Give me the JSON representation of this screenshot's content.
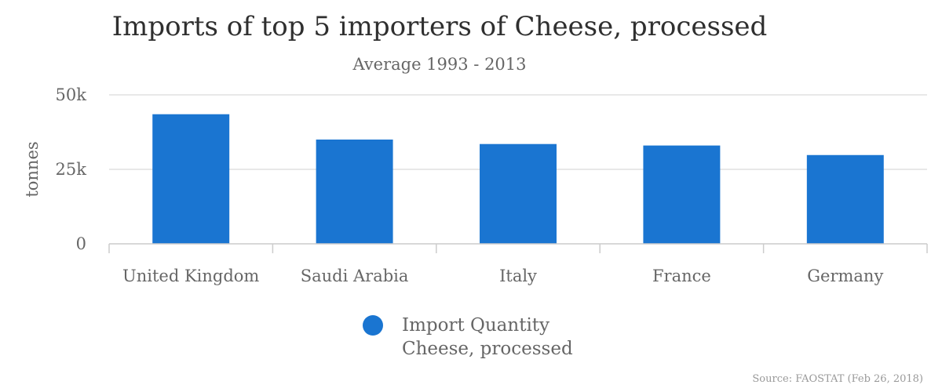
{
  "chart_data": {
    "type": "bar",
    "title": "Imports of top 5 importers of Cheese, processed",
    "subtitle": "Average 1993 - 2013",
    "xlabel": "",
    "ylabel": "tonnes",
    "ylim": [
      0,
      50000
    ],
    "yticks": [
      0,
      25000,
      50000
    ],
    "ytick_labels": [
      "0",
      "25k",
      "50k"
    ],
    "categories": [
      "United Kingdom",
      "Saudi Arabia",
      "Italy",
      "France",
      "Germany"
    ],
    "series": [
      {
        "name": "Import Quantity",
        "name_line2": "Cheese, processed",
        "values": [
          43500,
          35000,
          33500,
          33000,
          29800
        ],
        "color": "#1a75d1"
      }
    ],
    "grid": true,
    "legend_position": "bottom-center"
  },
  "source": "Source: FAOSTAT (Feb 26, 2018)"
}
